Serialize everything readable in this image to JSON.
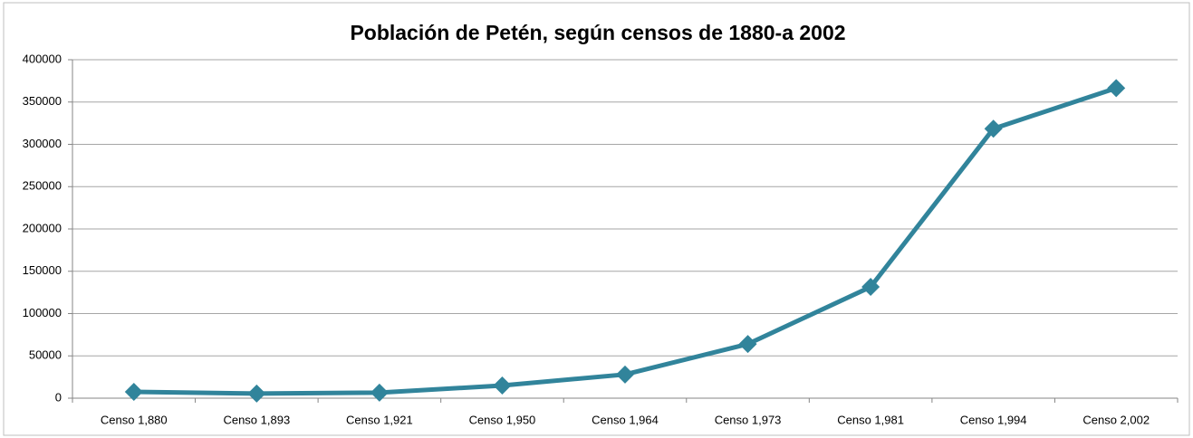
{
  "chart_data": {
    "type": "line",
    "title": "Población de Petén,  según censos de 1880-a 2002",
    "categories": [
      "Censo 1,880",
      "Censo 1,893",
      "Censo 1,921",
      "Censo 1,950",
      "Censo 1,964",
      "Censo 1,973",
      "Censo 1,981",
      "Censo 1,994",
      "Censo 2,002"
    ],
    "values": [
      7500,
      5500,
      6500,
      15000,
      28000,
      64000,
      131500,
      318500,
      366500
    ],
    "color": "#31849b",
    "ylim": [
      0,
      400000
    ],
    "yticks": [
      0,
      50000,
      100000,
      150000,
      200000,
      250000,
      300000,
      350000,
      400000
    ],
    "grid": true
  }
}
